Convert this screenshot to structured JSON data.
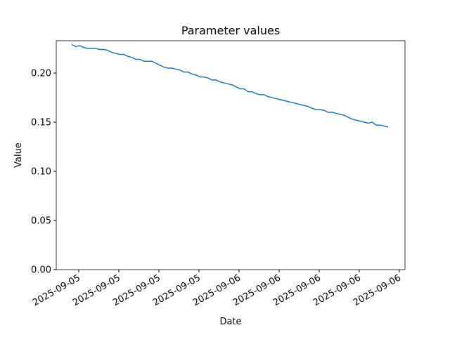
{
  "chart_data": {
    "type": "line",
    "title": "Parameter values",
    "x_label": "Date",
    "y_label": "Value",
    "x": [
      0,
      1,
      2,
      3,
      4,
      5,
      6,
      7,
      8,
      9,
      10,
      11,
      12,
      13,
      14,
      15,
      16,
      17,
      18,
      19,
      20,
      21,
      22,
      23,
      24,
      25,
      26,
      27,
      28,
      29,
      30,
      31,
      32,
      33,
      34,
      35,
      36,
      37,
      38,
      39,
      40,
      41,
      42,
      43,
      44,
      45,
      46,
      47,
      48,
      49,
      50,
      51,
      52,
      53,
      54,
      55,
      56,
      57,
      58,
      59,
      60,
      61,
      62,
      63,
      64,
      65,
      66,
      67,
      68,
      69,
      70,
      71,
      72,
      73,
      74,
      75,
      76,
      77,
      78,
      79
    ],
    "series": [
      {
        "color": "#1f77b4",
        "values": [
          0.229,
          0.227,
          0.228,
          0.226,
          0.225,
          0.225,
          0.225,
          0.224,
          0.224,
          0.223,
          0.221,
          0.22,
          0.219,
          0.219,
          0.217,
          0.216,
          0.214,
          0.214,
          0.212,
          0.212,
          0.212,
          0.21,
          0.208,
          0.206,
          0.205,
          0.205,
          0.204,
          0.203,
          0.201,
          0.201,
          0.199,
          0.198,
          0.196,
          0.196,
          0.195,
          0.193,
          0.193,
          0.191,
          0.19,
          0.189,
          0.188,
          0.186,
          0.184,
          0.184,
          0.181,
          0.181,
          0.179,
          0.178,
          0.178,
          0.176,
          0.175,
          0.174,
          0.173,
          0.172,
          0.171,
          0.17,
          0.169,
          0.168,
          0.167,
          0.166,
          0.164,
          0.163,
          0.163,
          0.162,
          0.16,
          0.16,
          0.159,
          0.158,
          0.157,
          0.155,
          0.153,
          0.152,
          0.151,
          0.15,
          0.149,
          0.15,
          0.147,
          0.147,
          0.146,
          0.145
        ]
      }
    ],
    "xlim": [
      -3.86,
      83.16
    ],
    "xticks": [
      {
        "value": 1.75,
        "label": "2025-09-05"
      },
      {
        "value": 11.75,
        "label": "2025-09-05"
      },
      {
        "value": 21.75,
        "label": "2025-09-05"
      },
      {
        "value": 31.75,
        "label": "2025-09-05"
      },
      {
        "value": 41.75,
        "label": "2025-09-06"
      },
      {
        "value": 51.75,
        "label": "2025-09-06"
      },
      {
        "value": 61.75,
        "label": "2025-09-06"
      },
      {
        "value": 71.75,
        "label": "2025-09-06"
      },
      {
        "value": 81.75,
        "label": "2025-09-06"
      }
    ],
    "ylim": [
      0,
      0.2329
    ],
    "yticks": [
      {
        "value": 0,
        "label": "0.00"
      },
      {
        "value": 0.05,
        "label": "0.05"
      },
      {
        "value": 0.1,
        "label": "0.10"
      },
      {
        "value": 0.15,
        "label": "0.15"
      },
      {
        "value": 0.2,
        "label": "0.20"
      }
    ]
  }
}
